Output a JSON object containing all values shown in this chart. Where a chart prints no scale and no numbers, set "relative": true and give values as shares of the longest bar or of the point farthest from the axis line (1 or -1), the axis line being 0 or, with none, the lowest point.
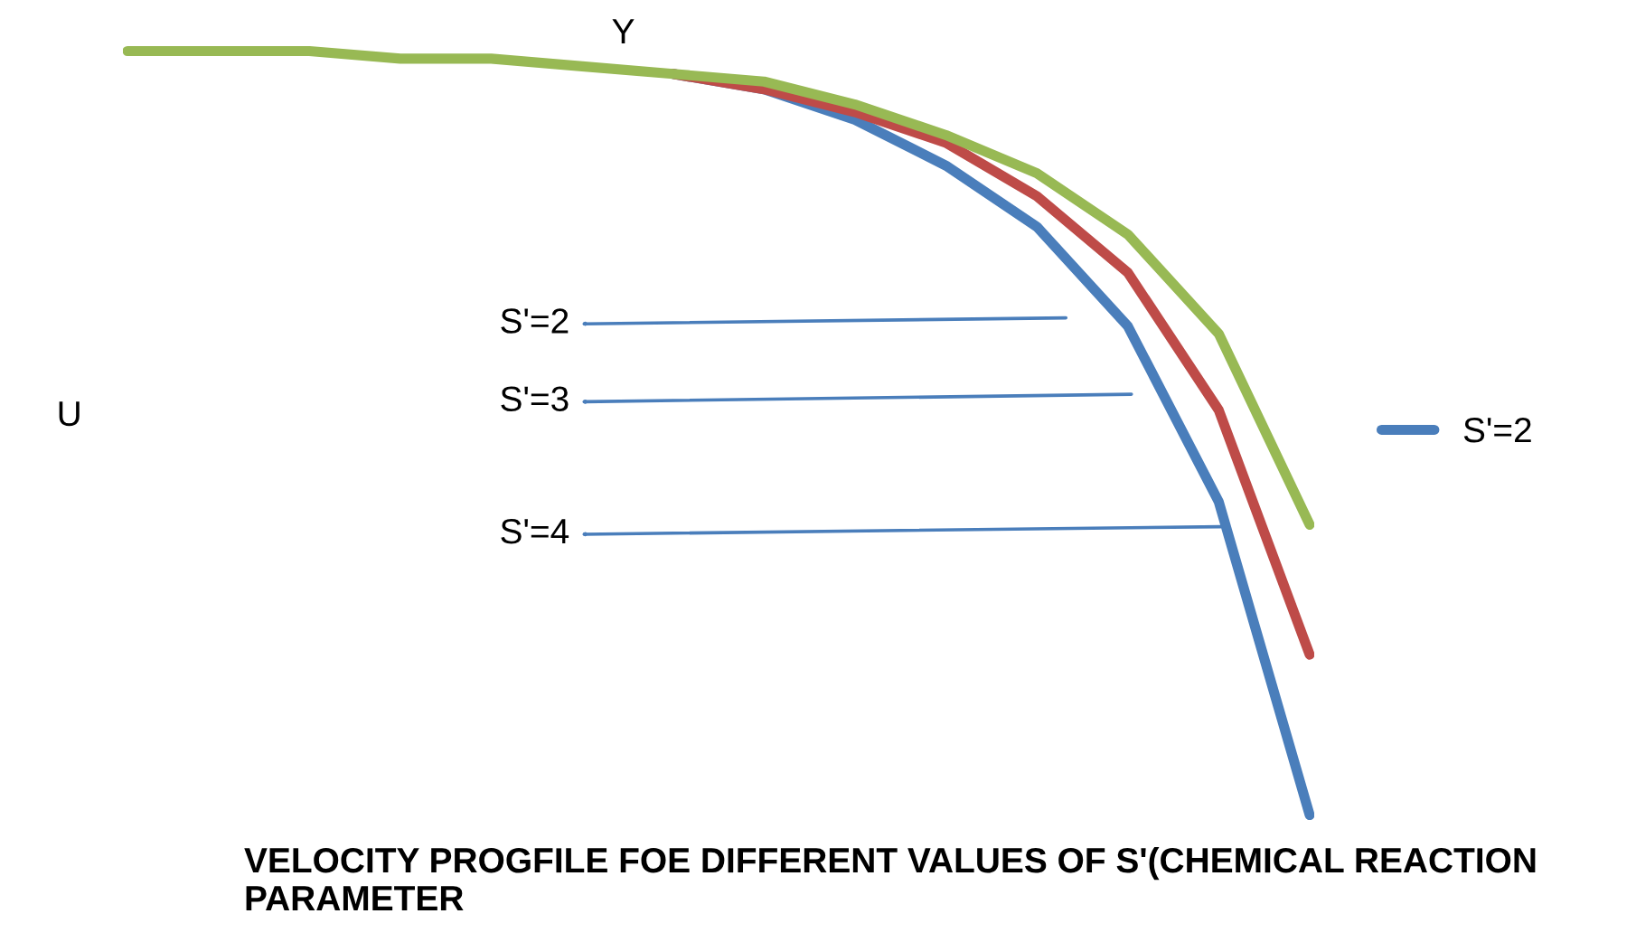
{
  "chart_data": {
    "type": "line",
    "relative": true,
    "title": "VELOCITY PROGFILE FOE DIFFERENT VALUES OF S'(CHEMICAL REACTION PARAMETER",
    "xlabel": "Y",
    "ylabel": "U",
    "categories": [
      null,
      null,
      null,
      null,
      null,
      null,
      null,
      null,
      null,
      null,
      null,
      null,
      null,
      null
    ],
    "series": [
      {
        "name": "S'=2",
        "color": "#4a7ebb",
        "values": [
          null,
          null,
          null,
          null,
          null,
          null,
          0.97,
          0.95,
          0.91,
          0.85,
          0.77,
          0.64,
          0.41,
          0
        ]
      },
      {
        "color": "#be4b48",
        "values": [
          null,
          null,
          null,
          null,
          null,
          null,
          0.97,
          0.95,
          0.92,
          0.88,
          0.81,
          0.71,
          0.53,
          0.21
        ]
      },
      {
        "color": "#98b954",
        "values": [
          1,
          1,
          1,
          0.99,
          0.99,
          0.98,
          0.97,
          0.96,
          0.93,
          0.89,
          0.84,
          0.76,
          0.63,
          0.38
        ]
      }
    ],
    "annotations": [
      "S'=2",
      "S'=3",
      "S'=4"
    ],
    "legend": "right",
    "grid": false,
    "marker": "none",
    "line_style": "solid"
  }
}
